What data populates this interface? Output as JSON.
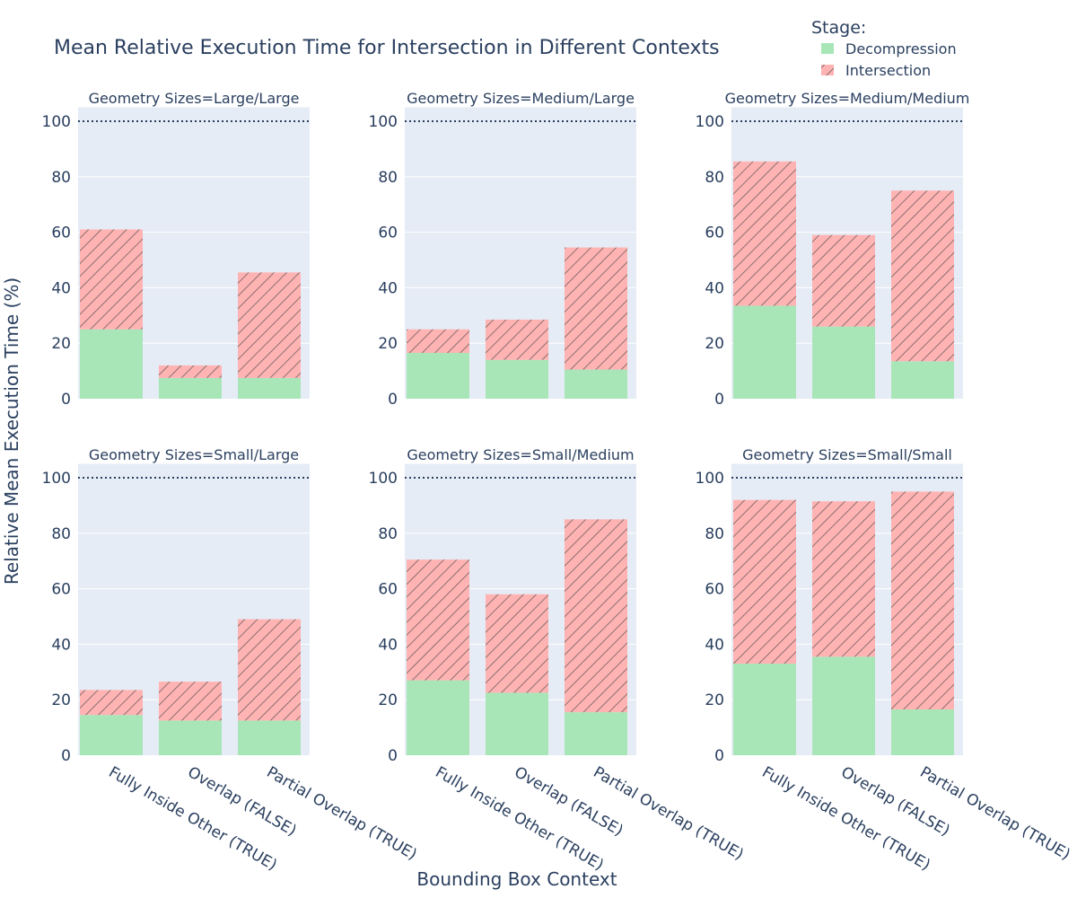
{
  "chart_data": {
    "type": "bar",
    "stacked": true,
    "title": "Mean Relative Execution Time for Intersection in Different Contexts",
    "xlabel": "Bounding Box Context",
    "ylabel": "Relative Mean Execution Time (%)",
    "ylim": [
      0,
      105
    ],
    "yticks": [
      0,
      20,
      40,
      60,
      80,
      100
    ],
    "reference_line": 100,
    "grid": true,
    "legend": {
      "title": "Stage:",
      "placement": "top-right",
      "items": [
        {
          "name": "Decompression",
          "color": "#a8e6b8",
          "pattern": "none"
        },
        {
          "name": "Intersection",
          "color": "#ffb3b3",
          "pattern": "diagonal-hatch"
        }
      ]
    },
    "categories": [
      "Fully Inside Other (TRUE)",
      "Overlap (FALSE)",
      "Partial Overlap (TRUE)"
    ],
    "panels": [
      {
        "title": "Geometry Sizes=Large/Large",
        "series": [
          {
            "name": "Decompression",
            "values": [
              25,
              7.5,
              7.5
            ]
          },
          {
            "name": "Intersection",
            "values": [
              36,
              4.5,
              38
            ]
          }
        ]
      },
      {
        "title": "Geometry Sizes=Medium/Large",
        "series": [
          {
            "name": "Decompression",
            "values": [
              16.5,
              14,
              10.5
            ]
          },
          {
            "name": "Intersection",
            "values": [
              8.5,
              14.5,
              44
            ]
          }
        ]
      },
      {
        "title": "Geometry Sizes=Medium/Medium",
        "series": [
          {
            "name": "Decompression",
            "values": [
              33.5,
              26,
              13.5
            ]
          },
          {
            "name": "Intersection",
            "values": [
              52,
              33,
              61.5
            ]
          }
        ]
      },
      {
        "title": "Geometry Sizes=Small/Large",
        "series": [
          {
            "name": "Decompression",
            "values": [
              14.5,
              12.5,
              12.5
            ]
          },
          {
            "name": "Intersection",
            "values": [
              9,
              14,
              36.5
            ]
          }
        ]
      },
      {
        "title": "Geometry Sizes=Small/Medium",
        "series": [
          {
            "name": "Decompression",
            "values": [
              27,
              22.5,
              15.5
            ]
          },
          {
            "name": "Intersection",
            "values": [
              43.5,
              35.5,
              69.5
            ]
          }
        ]
      },
      {
        "title": "Geometry Sizes=Small/Small",
        "series": [
          {
            "name": "Decompression",
            "values": [
              33,
              35.5,
              16.5
            ]
          },
          {
            "name": "Intersection",
            "values": [
              59,
              56,
              78.5
            ]
          }
        ]
      }
    ]
  }
}
